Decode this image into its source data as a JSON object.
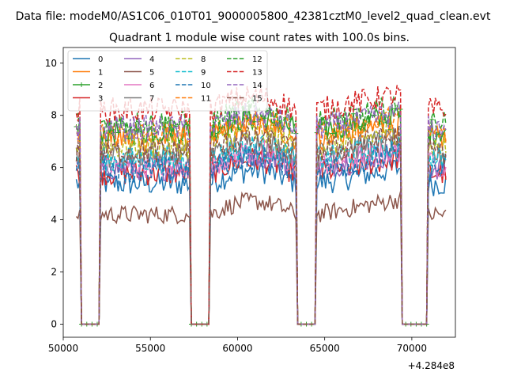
{
  "chart_data": {
    "type": "line",
    "suptitle": "Data file: modeM0/AS1C06_010T01_9000005800_42381cztM0_level2_quad_clean.evt",
    "title": "Quadrant 1 module wise count rates with 100.0s bins.",
    "xlabel": "",
    "ylabel": "",
    "xlim": [
      50000,
      72500
    ],
    "ylim": [
      -0.5,
      10.6
    ],
    "x_offset_label": "+4.284e8",
    "x_ticks": [
      50000,
      55000,
      60000,
      65000,
      70000
    ],
    "y_ticks": [
      0,
      2,
      4,
      6,
      8,
      10
    ],
    "legend_location": "upper-left",
    "legend_columns": 4,
    "gaps": [
      [
        51000,
        52100
      ],
      [
        57300,
        58400
      ],
      [
        63400,
        64500
      ],
      [
        69400,
        70900
      ]
    ],
    "segments": [
      [
        50750,
        51000
      ],
      [
        52100,
        57300
      ],
      [
        58400,
        63400
      ],
      [
        64500,
        69400
      ],
      [
        70900,
        72000
      ]
    ],
    "bin_size": 100,
    "series": [
      {
        "name": "0",
        "color": "#1f77b4",
        "style": "solid",
        "marker": "",
        "level": 5.4
      },
      {
        "name": "1",
        "color": "#ff7f0e",
        "style": "solid",
        "marker": "",
        "level": 7.1
      },
      {
        "name": "2",
        "color": "#2ca02c",
        "style": "solid",
        "marker": "+",
        "level": 7.4
      },
      {
        "name": "3",
        "color": "#d62728",
        "style": "solid",
        "marker": "",
        "level": 5.8
      },
      {
        "name": "4",
        "color": "#9467bd",
        "style": "solid",
        "marker": "",
        "level": 6.0
      },
      {
        "name": "5",
        "color": "#8c564b",
        "style": "solid",
        "marker": "",
        "level": 4.2
      },
      {
        "name": "6",
        "color": "#e377c2",
        "style": "solid",
        "marker": "",
        "level": 6.1
      },
      {
        "name": "7",
        "color": "#7f7f7f",
        "style": "solid",
        "marker": "",
        "level": 6.5
      },
      {
        "name": "8",
        "color": "#bcbd22",
        "style": "dashed",
        "marker": "",
        "level": 6.8
      },
      {
        "name": "9",
        "color": "#17becf",
        "style": "dashed",
        "marker": "",
        "level": 6.3
      },
      {
        "name": "10",
        "color": "#1f77b4",
        "style": "dashed",
        "marker": "",
        "level": 5.9
      },
      {
        "name": "11",
        "color": "#ff7f0e",
        "style": "dashed",
        "marker": "",
        "level": 7.3
      },
      {
        "name": "12",
        "color": "#2ca02c",
        "style": "dashed",
        "marker": "",
        "level": 7.7
      },
      {
        "name": "13",
        "color": "#d62728",
        "style": "dashed",
        "marker": "",
        "level": 8.2
      },
      {
        "name": "14",
        "color": "#9467bd",
        "style": "dashed",
        "marker": "",
        "level": 7.5
      },
      {
        "name": "15",
        "color": "#8c564b",
        "style": "dashed",
        "marker": "",
        "level": 6.6
      }
    ]
  }
}
